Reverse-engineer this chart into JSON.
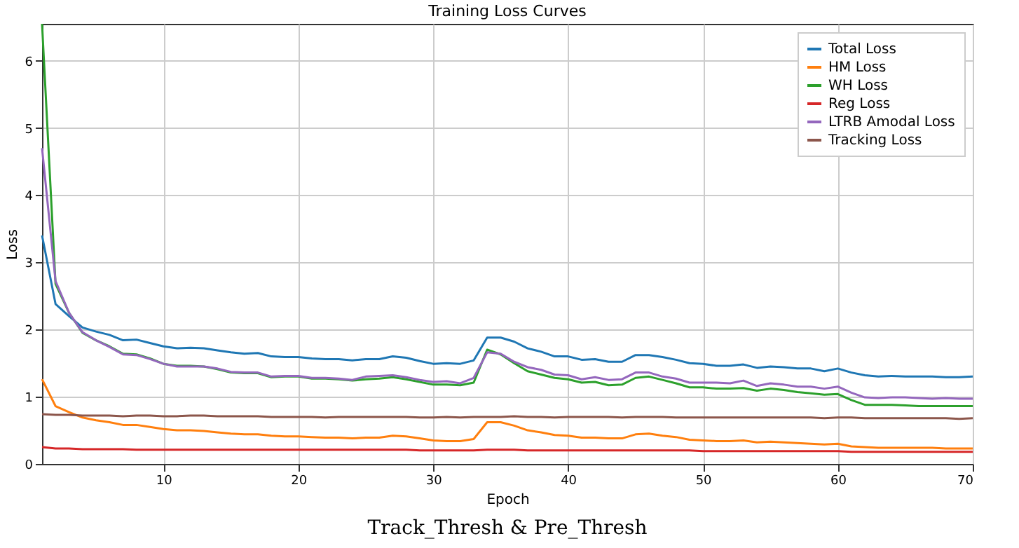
{
  "chart_data": {
    "type": "line",
    "title": "Training Loss Curves",
    "xlabel": "Epoch",
    "ylabel": "Loss",
    "x": [
      1,
      2,
      3,
      4,
      5,
      6,
      7,
      8,
      9,
      10,
      11,
      12,
      13,
      14,
      15,
      16,
      17,
      18,
      19,
      20,
      21,
      22,
      23,
      24,
      25,
      26,
      27,
      28,
      29,
      30,
      31,
      32,
      33,
      34,
      35,
      36,
      37,
      38,
      39,
      40,
      41,
      42,
      43,
      44,
      45,
      46,
      47,
      48,
      49,
      50,
      51,
      52,
      53,
      54,
      55,
      56,
      57,
      58,
      59,
      60,
      61,
      62,
      63,
      64,
      65,
      66,
      67,
      68,
      69,
      70
    ],
    "series": [
      {
        "name": "Total Loss",
        "color": "#1f77b4",
        "values": [
          3.4,
          2.38,
          2.2,
          2.03,
          1.97,
          1.92,
          1.84,
          1.85,
          1.8,
          1.75,
          1.72,
          1.73,
          1.72,
          1.69,
          1.66,
          1.64,
          1.65,
          1.6,
          1.59,
          1.59,
          1.57,
          1.56,
          1.56,
          1.54,
          1.56,
          1.56,
          1.6,
          1.58,
          1.53,
          1.49,
          1.5,
          1.49,
          1.54,
          1.88,
          1.88,
          1.82,
          1.72,
          1.67,
          1.6,
          1.6,
          1.55,
          1.56,
          1.52,
          1.52,
          1.62,
          1.62,
          1.59,
          1.55,
          1.5,
          1.49,
          1.46,
          1.46,
          1.48,
          1.43,
          1.45,
          1.44,
          1.42,
          1.42,
          1.38,
          1.42,
          1.36,
          1.32,
          1.3,
          1.31,
          1.3,
          1.3,
          1.3,
          1.29,
          1.29,
          1.3
        ]
      },
      {
        "name": "HM Loss",
        "color": "#ff7f0e",
        "values": [
          1.26,
          0.86,
          0.77,
          0.69,
          0.65,
          0.62,
          0.58,
          0.58,
          0.55,
          0.52,
          0.5,
          0.5,
          0.49,
          0.47,
          0.45,
          0.44,
          0.44,
          0.42,
          0.41,
          0.41,
          0.4,
          0.39,
          0.39,
          0.38,
          0.39,
          0.39,
          0.42,
          0.41,
          0.38,
          0.35,
          0.34,
          0.34,
          0.37,
          0.62,
          0.62,
          0.57,
          0.5,
          0.47,
          0.43,
          0.42,
          0.39,
          0.39,
          0.38,
          0.38,
          0.44,
          0.45,
          0.42,
          0.4,
          0.36,
          0.35,
          0.34,
          0.34,
          0.35,
          0.32,
          0.33,
          0.32,
          0.31,
          0.3,
          0.29,
          0.3,
          0.26,
          0.25,
          0.24,
          0.24,
          0.24,
          0.24,
          0.24,
          0.23,
          0.23,
          0.23
        ]
      },
      {
        "name": "WH Loss",
        "color": "#2ca02c",
        "values": [
          6.55,
          2.68,
          2.25,
          1.95,
          1.84,
          1.75,
          1.64,
          1.63,
          1.57,
          1.49,
          1.46,
          1.46,
          1.45,
          1.41,
          1.36,
          1.35,
          1.35,
          1.29,
          1.3,
          1.3,
          1.27,
          1.27,
          1.26,
          1.24,
          1.26,
          1.27,
          1.29,
          1.26,
          1.22,
          1.18,
          1.18,
          1.17,
          1.21,
          1.7,
          1.63,
          1.5,
          1.38,
          1.33,
          1.28,
          1.26,
          1.21,
          1.22,
          1.17,
          1.18,
          1.28,
          1.3,
          1.25,
          1.2,
          1.14,
          1.14,
          1.12,
          1.12,
          1.13,
          1.09,
          1.12,
          1.1,
          1.07,
          1.05,
          1.03,
          1.04,
          0.95,
          0.88,
          0.88,
          0.88,
          0.87,
          0.86,
          0.86,
          0.86,
          0.86,
          0.86
        ]
      },
      {
        "name": "Reg Loss",
        "color": "#d62728",
        "values": [
          0.25,
          0.23,
          0.23,
          0.22,
          0.22,
          0.22,
          0.22,
          0.21,
          0.21,
          0.21,
          0.21,
          0.21,
          0.21,
          0.21,
          0.21,
          0.21,
          0.21,
          0.21,
          0.21,
          0.21,
          0.21,
          0.21,
          0.21,
          0.21,
          0.21,
          0.21,
          0.21,
          0.21,
          0.2,
          0.2,
          0.2,
          0.2,
          0.2,
          0.21,
          0.21,
          0.21,
          0.2,
          0.2,
          0.2,
          0.2,
          0.2,
          0.2,
          0.2,
          0.2,
          0.2,
          0.2,
          0.2,
          0.2,
          0.2,
          0.19,
          0.19,
          0.19,
          0.19,
          0.19,
          0.19,
          0.19,
          0.19,
          0.19,
          0.19,
          0.19,
          0.18,
          0.18,
          0.18,
          0.18,
          0.18,
          0.18,
          0.18,
          0.18,
          0.18,
          0.18
        ]
      },
      {
        "name": "LTRB Amodal Loss",
        "color": "#9467bd",
        "values": [
          4.7,
          2.72,
          2.25,
          1.96,
          1.84,
          1.74,
          1.63,
          1.62,
          1.56,
          1.49,
          1.45,
          1.45,
          1.45,
          1.42,
          1.37,
          1.36,
          1.36,
          1.3,
          1.31,
          1.31,
          1.28,
          1.28,
          1.27,
          1.25,
          1.3,
          1.31,
          1.32,
          1.29,
          1.25,
          1.22,
          1.23,
          1.2,
          1.28,
          1.66,
          1.64,
          1.52,
          1.44,
          1.4,
          1.33,
          1.32,
          1.26,
          1.29,
          1.25,
          1.26,
          1.36,
          1.36,
          1.3,
          1.27,
          1.21,
          1.21,
          1.21,
          1.2,
          1.24,
          1.16,
          1.2,
          1.18,
          1.15,
          1.15,
          1.12,
          1.15,
          1.06,
          0.99,
          0.98,
          0.99,
          0.99,
          0.98,
          0.97,
          0.98,
          0.97,
          0.97
        ]
      },
      {
        "name": "Tracking Loss",
        "color": "#8c564b",
        "values": [
          0.74,
          0.73,
          0.73,
          0.72,
          0.72,
          0.72,
          0.71,
          0.72,
          0.72,
          0.71,
          0.71,
          0.72,
          0.72,
          0.71,
          0.71,
          0.71,
          0.71,
          0.7,
          0.7,
          0.7,
          0.7,
          0.69,
          0.7,
          0.7,
          0.7,
          0.7,
          0.7,
          0.7,
          0.69,
          0.69,
          0.7,
          0.69,
          0.7,
          0.7,
          0.7,
          0.71,
          0.7,
          0.7,
          0.69,
          0.7,
          0.7,
          0.7,
          0.7,
          0.69,
          0.7,
          0.7,
          0.7,
          0.69,
          0.69,
          0.69,
          0.69,
          0.69,
          0.69,
          0.69,
          0.69,
          0.69,
          0.69,
          0.69,
          0.68,
          0.69,
          0.69,
          0.68,
          0.68,
          0.68,
          0.68,
          0.68,
          0.68,
          0.68,
          0.67,
          0.68
        ]
      }
    ],
    "xlim": [
      1,
      70
    ],
    "xticks": [
      10,
      20,
      30,
      40,
      50,
      60,
      70
    ],
    "ylim": [
      0,
      6.55
    ],
    "yticks": [
      0,
      1,
      2,
      3,
      4,
      5,
      6
    ],
    "grid": true,
    "legend": "top right",
    "marker": "none",
    "line_style": "solid",
    "annotations": [
      "Track_Thresh & Pre_Thresh"
    ]
  }
}
